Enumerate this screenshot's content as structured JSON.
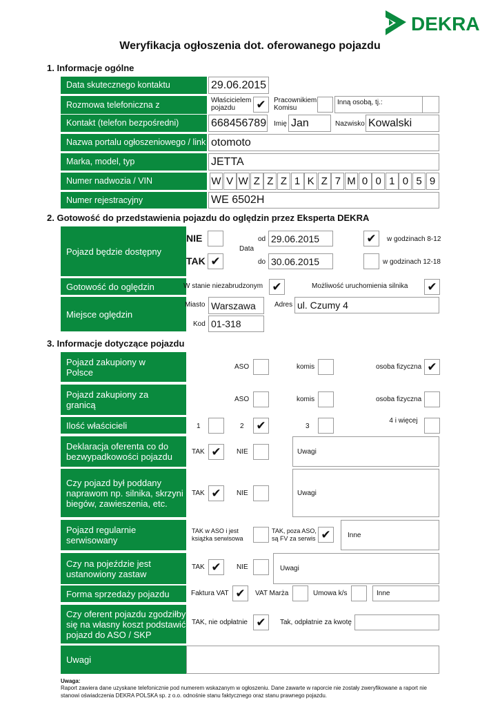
{
  "brand": {
    "name": "DEKRA",
    "color": "#0a8a3e"
  },
  "title": "Weryfikacja ogłoszenia dot. oferowanego pojazdu",
  "s1": {
    "heading": "1. Informacje ogólne",
    "labels": [
      "Data skutecznego kontaktu",
      "Rozmowa telefoniczna z",
      "Kontakt (telefon bezpośredni)",
      "Nazwa portalu ogłoszeniowego / link",
      "Marka, model, typ",
      "Numer nadwozia / VIN",
      "Numer rejestracyjny"
    ],
    "date": "29.06.2015",
    "owner_label": "Właścicielem pojazdu",
    "owner_checked": true,
    "dealer_label": "Pracownikiem Komisu",
    "dealer_checked": false,
    "other_label": "Inną osobą, tj.:",
    "other_checked": false,
    "phone": "668456789",
    "first_name_label": "Imię",
    "first_name": "Jan",
    "last_name_label": "Nazwisko",
    "last_name": "Kowalski",
    "portal": "otomoto",
    "make": "JETTA",
    "vin": [
      "W",
      "V",
      "W",
      "Z",
      "Z",
      "Z",
      "1",
      "K",
      "Z",
      "7",
      "M",
      "0",
      "0",
      "1",
      "0",
      "5",
      "9"
    ],
    "reg": "WE 6502H"
  },
  "s2": {
    "heading": "2. Gotowość do przedstawienia pojazdu do oględzin przez Eksperta DEKRA",
    "available_label": "Pojazd będzie dostępny",
    "nie": "NIE",
    "nie_checked": false,
    "tak": "TAK",
    "tak_checked": true,
    "data_label": "Data",
    "od_label": "od",
    "od": "29.06.2015",
    "do_label": "do",
    "do": "30.06.2015",
    "h1_label": "w godzinach 8-12",
    "h1_checked": true,
    "h2_label": "w godzinach 12-18",
    "h2_checked": false,
    "ready_label": "Gotowość do oględzin",
    "clean_label": "W stanie niezabrudzonym",
    "clean_checked": true,
    "engine_label": "Możliwość uruchomienia silnika",
    "engine_checked": true,
    "place_label": "Miejsce oględzin",
    "city_label": "Miasto",
    "city": "Warszawa",
    "address_label": "Adres",
    "address": "ul. Czumy 4",
    "zip_label": "Kod",
    "zip": "01-318"
  },
  "s3": {
    "heading": "3. Informacje dotyczące pojazdu",
    "labels": [
      "Pojazd zakupiony w Polsce",
      "Pojazd zakupiony za granicą",
      "Ilość właścicieli",
      "Deklaracja oferenta co do bezwypadkowości pojazdu",
      "Czy pojazd był poddany naprawom np. silnika, skrzyni biegów, zawieszenia, etc.",
      "Pojazd regularnie serwisowany",
      "Czy na pojeździe jest ustanowiony zastaw",
      "Forma sprzedaży pojazdu",
      "Czy oferent pojazdu zgodziłby się na własny koszt podstawić pojazd do ASO / SKP",
      "Uwagi"
    ],
    "aso": "ASO",
    "komis": "komis",
    "osoba": "osoba fizyczna",
    "pl": {
      "aso": false,
      "komis": false,
      "osoba": true
    },
    "abroad": {
      "aso": false,
      "komis": false,
      "osoba": false
    },
    "owners": {
      "l1": "1",
      "l2": "2",
      "l3": "3",
      "l4": "4 i więcej",
      "c1": false,
      "c2": true,
      "c3": false,
      "c4": false
    },
    "tak": "TAK",
    "nie": "NIE",
    "uwagi": "Uwagi",
    "inne": "Inne",
    "accident": {
      "tak": true,
      "nie": false
    },
    "repairs": {
      "tak": true,
      "nie": false
    },
    "service": {
      "aso_label": "TAK w ASO i jest książka serwisowa",
      "aso": false,
      "fv_label": "TAK, poza ASO, są FV za serwis",
      "fv": true
    },
    "lien": {
      "tak": true,
      "nie": false
    },
    "sale": {
      "vat_label": "Faktura VAT",
      "vat": true,
      "marza_label": "VAT Marża",
      "marza": false,
      "umowa_label": "Umowa k/s",
      "umowa": false
    },
    "deliver": {
      "free_label": "TAK, nie odpłatnie",
      "free": true,
      "paid_label": "Tak, odpłatnie za kwotę"
    }
  },
  "note": {
    "title": "Uwaga:",
    "text": "Raport zawiera dane uzyskane telefonicznie pod numerem wskazanym w ogłoszeniu. Dane zawarte w raporcie nie zostały zweryfikowane a raport nie stanowi oświadczenia DEKRA POLSKA sp. z o.o. odnośnie stanu faktycznego oraz stanu prawnego pojazdu."
  }
}
